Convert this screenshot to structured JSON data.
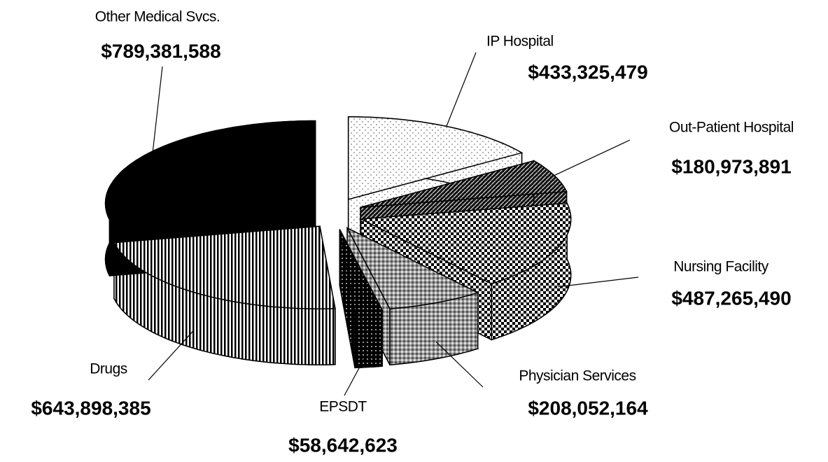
{
  "chart_data": {
    "type": "pie",
    "categories": [
      "IP Hospital",
      "Out-Patient Hospital",
      "Nursing Facility",
      "Physician Services",
      "EPSDT",
      "Drugs",
      "Other Medical Svcs."
    ],
    "values": [
      433325479,
      180973891,
      487265490,
      208052164,
      58642623,
      643898385,
      789381588
    ],
    "value_labels": [
      "$433,325,479",
      "$180,973,891",
      "$487,265,490",
      "$208,052,164",
      "$58,642,623",
      "$643,898,385",
      "$789,381,588"
    ]
  }
}
